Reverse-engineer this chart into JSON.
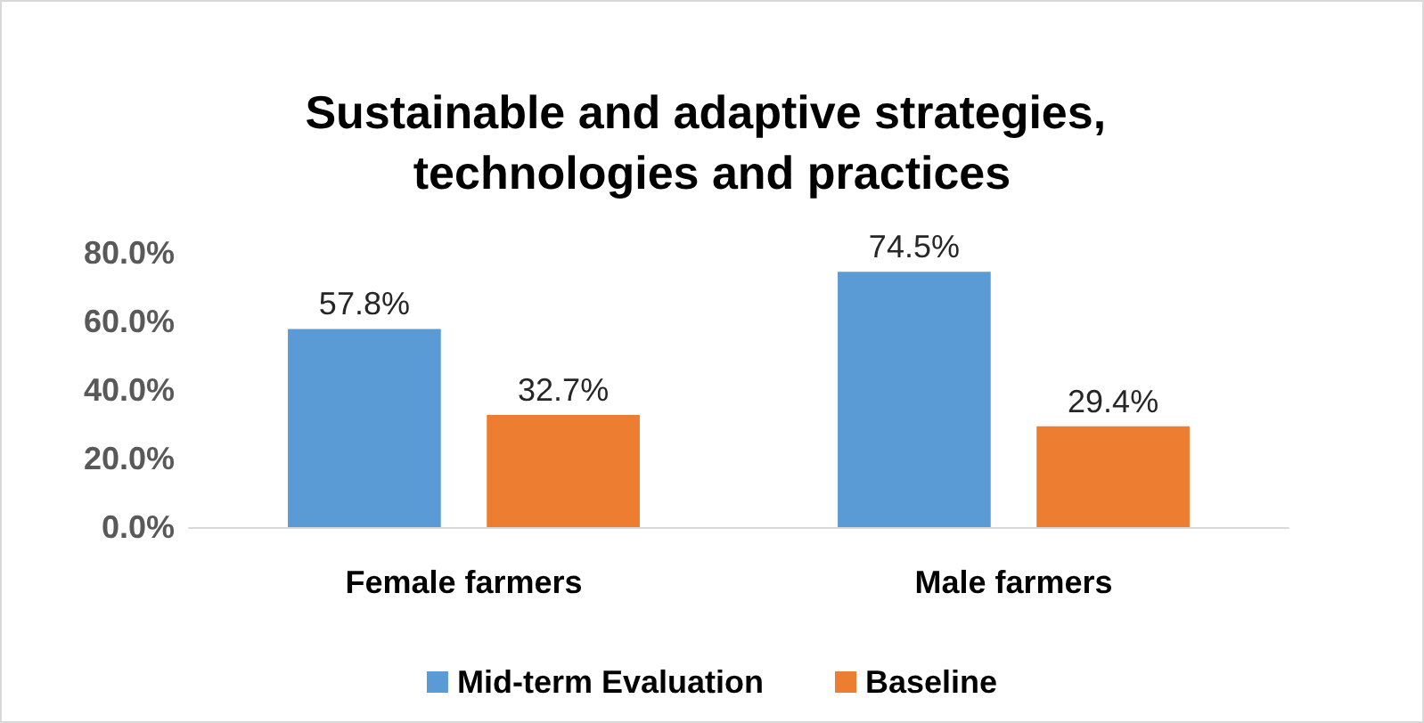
{
  "chart_data": {
    "type": "bar",
    "title": "Sustainable and adaptive strategies, technologies and practices",
    "categories": [
      "Female farmers",
      "Male farmers"
    ],
    "series": [
      {
        "name": "Mid-term Evaluation",
        "color": "#5b9bd5",
        "values": [
          57.8,
          74.5
        ],
        "value_labels": [
          "57.8%",
          "74.5%"
        ]
      },
      {
        "name": "Baseline",
        "color": "#ed7d31",
        "values": [
          32.7,
          29.4
        ],
        "value_labels": [
          "32.7%",
          "29.4%"
        ]
      }
    ],
    "ylim": [
      0,
      80
    ],
    "yticks": [
      {
        "value": 0,
        "label": "0.0%"
      },
      {
        "value": 20,
        "label": "20.0%"
      },
      {
        "value": 40,
        "label": "40.0%"
      },
      {
        "value": 60,
        "label": "60.0%"
      },
      {
        "value": 80,
        "label": "80.0%"
      }
    ],
    "grid": false,
    "legend": "bottom"
  }
}
